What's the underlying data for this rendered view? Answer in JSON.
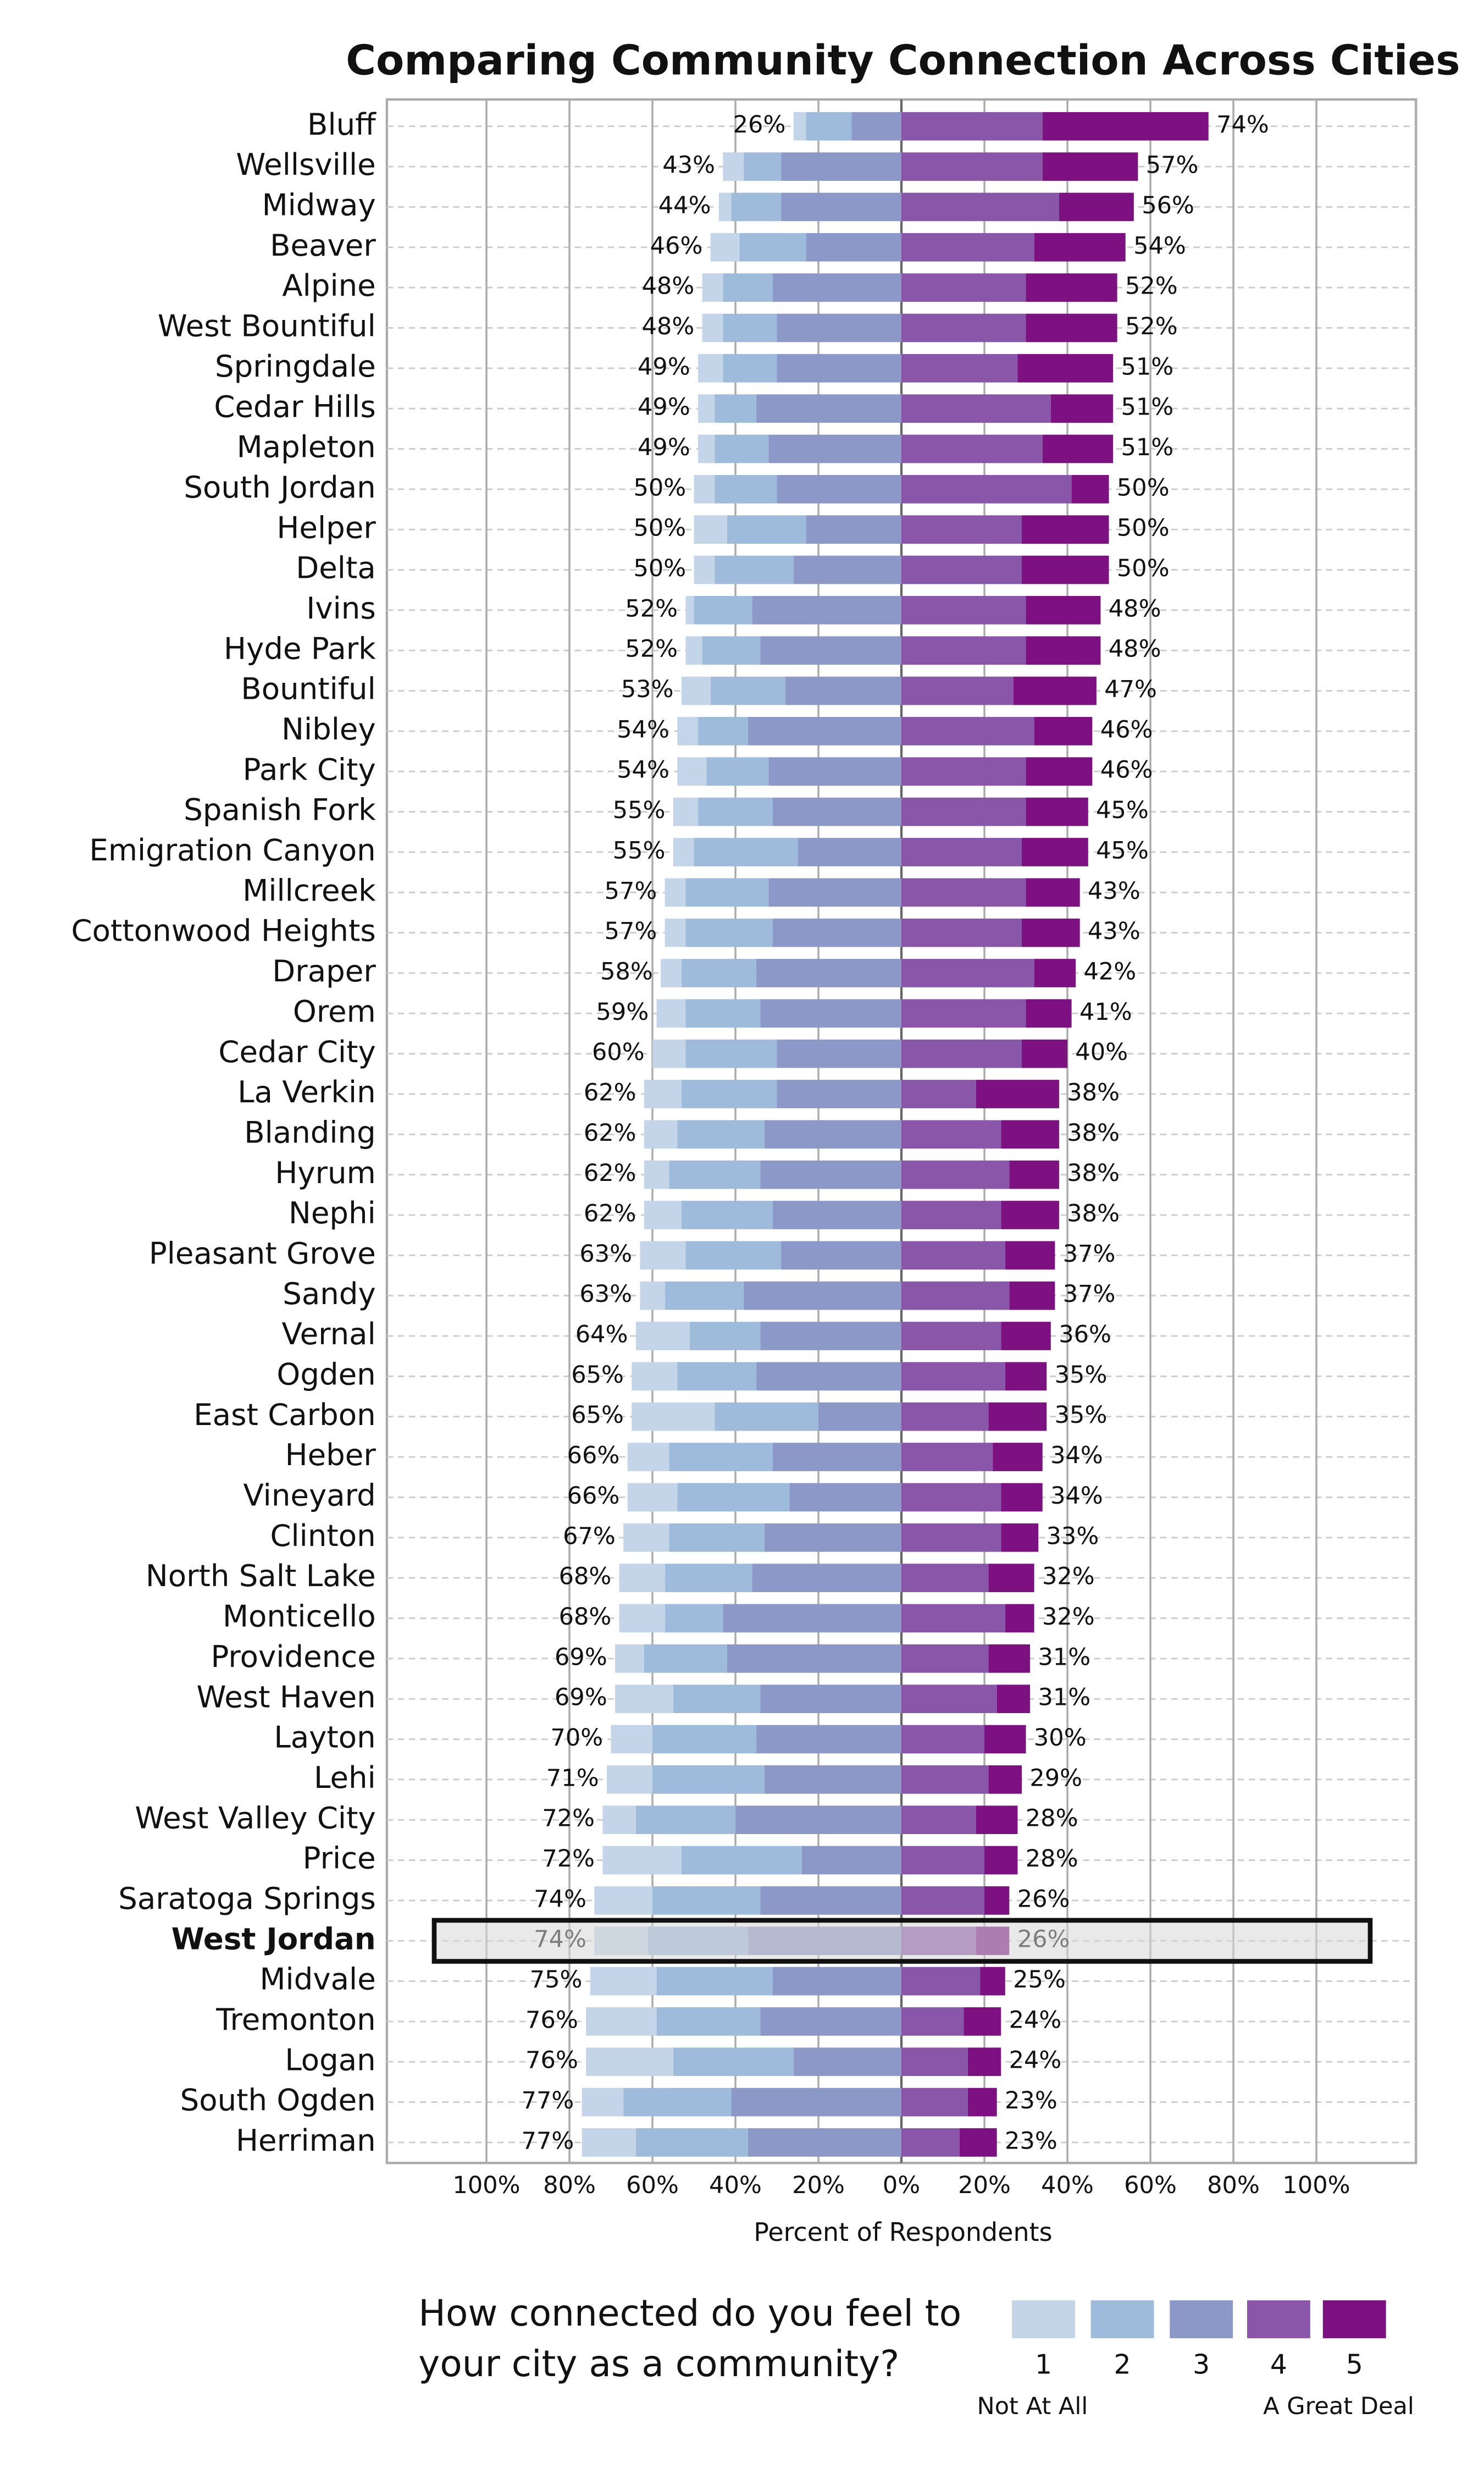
{
  "chart_data": {
    "type": "diverging_bar",
    "title": "Comparing Community Connection Across Cities",
    "x_label": "Percent of Respondents",
    "legend_title": "How connected do you feel to your city as a community?",
    "legend_low": "Not At All",
    "legend_high": "A Great Deal",
    "highlight": "West Jordan",
    "categories": [
      "Bluff",
      "Wellsville",
      "Midway",
      "Beaver",
      "Alpine",
      "West Bountiful",
      "Springdale",
      "Cedar Hills",
      "Mapleton",
      "South Jordan",
      "Helper",
      "Delta",
      "Ivins",
      "Hyde Park",
      "Bountiful",
      "Nibley",
      "Park City",
      "Spanish Fork",
      "Emigration Canyon",
      "Millcreek",
      "Cottonwood Heights",
      "Draper",
      "Orem",
      "Cedar City",
      "La Verkin",
      "Blanding",
      "Hyrum",
      "Nephi",
      "Pleasant Grove",
      "Sandy",
      "Vernal",
      "Ogden",
      "East Carbon",
      "Heber",
      "Vineyard",
      "Clinton",
      "North Salt Lake",
      "Monticello",
      "Providence",
      "West Haven",
      "Layton",
      "Lehi",
      "West Valley City",
      "Price",
      "Saratoga Springs",
      "West Jordan",
      "Midvale",
      "Tremonton",
      "Logan",
      "South Ogden",
      "Herriman"
    ],
    "series": [
      {
        "name": "1",
        "side": "left",
        "color": "#c4d4e9",
        "values": [
          3,
          5,
          3,
          7,
          5,
          5,
          6,
          4,
          4,
          5,
          8,
          5,
          2,
          4,
          7,
          5,
          7,
          6,
          5,
          5,
          5,
          5,
          7,
          8,
          9,
          8,
          6,
          9,
          11,
          6,
          13,
          11,
          20,
          10,
          12,
          11,
          11,
          11,
          7,
          14,
          10,
          11,
          8,
          19,
          14,
          13,
          16,
          17,
          21,
          10,
          13
        ]
      },
      {
        "name": "2",
        "side": "left",
        "color": "#9fbbdc",
        "values": [
          11,
          9,
          12,
          16,
          12,
          13,
          13,
          10,
          13,
          15,
          19,
          19,
          14,
          14,
          18,
          12,
          15,
          18,
          25,
          20,
          21,
          18,
          18,
          22,
          23,
          21,
          22,
          22,
          23,
          19,
          17,
          19,
          25,
          25,
          27,
          23,
          21,
          14,
          20,
          21,
          25,
          27,
          24,
          29,
          26,
          24,
          28,
          25,
          29,
          26,
          27
        ]
      },
      {
        "name": "3",
        "side": "left",
        "color": "#8c98c8",
        "values": [
          12,
          29,
          29,
          23,
          31,
          30,
          30,
          35,
          32,
          30,
          23,
          26,
          36,
          34,
          28,
          37,
          32,
          31,
          25,
          32,
          31,
          35,
          34,
          30,
          30,
          33,
          34,
          31,
          29,
          38,
          34,
          35,
          20,
          31,
          27,
          33,
          36,
          43,
          42,
          34,
          35,
          33,
          40,
          24,
          34,
          37,
          31,
          34,
          26,
          41,
          37
        ]
      },
      {
        "name": "4",
        "side": "right",
        "color": "#8a56a9",
        "values": [
          34,
          34,
          38,
          32,
          30,
          30,
          28,
          36,
          34,
          41,
          29,
          29,
          30,
          30,
          27,
          32,
          30,
          30,
          29,
          30,
          29,
          32,
          30,
          29,
          18,
          24,
          26,
          24,
          25,
          26,
          24,
          25,
          21,
          22,
          24,
          24,
          21,
          25,
          21,
          23,
          20,
          21,
          18,
          20,
          20,
          18,
          19,
          15,
          16,
          16,
          14
        ]
      },
      {
        "name": "5",
        "side": "right",
        "color": "#7d1182",
        "values": [
          40,
          23,
          18,
          22,
          22,
          22,
          23,
          15,
          17,
          9,
          21,
          21,
          18,
          18,
          20,
          14,
          16,
          15,
          16,
          13,
          14,
          10,
          11,
          11,
          20,
          14,
          12,
          14,
          12,
          11,
          12,
          10,
          14,
          12,
          10,
          9,
          11,
          7,
          10,
          8,
          10,
          8,
          10,
          8,
          6,
          8,
          6,
          9,
          8,
          7,
          9
        ]
      }
    ],
    "left_totals": [
      26,
      43,
      44,
      46,
      48,
      48,
      49,
      49,
      49,
      50,
      50,
      50,
      52,
      52,
      53,
      54,
      54,
      55,
      55,
      57,
      57,
      58,
      59,
      60,
      62,
      62,
      62,
      62,
      63,
      63,
      64,
      65,
      65,
      66,
      66,
      67,
      68,
      68,
      69,
      69,
      70,
      71,
      72,
      72,
      74,
      74,
      75,
      76,
      76,
      77,
      77
    ],
    "left_value_labels": [
      "26%",
      "43%",
      "44%",
      "46%",
      "48%",
      "48%",
      "49%",
      "49%",
      "49%",
      "50%",
      "50%",
      "50%",
      "52%",
      "52%",
      "53%",
      "54%",
      "54%",
      "55%",
      "55%",
      "57%",
      "57%",
      "58%",
      "59%",
      "60%",
      "62%",
      "62%",
      "62%",
      "62%",
      "63%",
      "63%",
      "64%",
      "65%",
      "65%",
      "66%",
      "66%",
      "67%",
      "68%",
      "68%",
      "69%",
      "69%",
      "70%",
      "71%",
      "72%",
      "72%",
      "74%",
      "74%",
      "75%",
      "76%",
      "76%",
      "77%",
      "77%"
    ],
    "right_totals": [
      74,
      57,
      56,
      54,
      52,
      52,
      51,
      51,
      51,
      50,
      50,
      50,
      48,
      48,
      47,
      46,
      46,
      45,
      45,
      43,
      43,
      42,
      41,
      40,
      38,
      38,
      38,
      38,
      37,
      37,
      36,
      35,
      35,
      34,
      34,
      33,
      32,
      32,
      31,
      31,
      30,
      29,
      28,
      28,
      26,
      26,
      25,
      24,
      24,
      23,
      23
    ],
    "right_value_labels": [
      "74%",
      "57%",
      "56%",
      "54%",
      "52%",
      "52%",
      "51%",
      "51%",
      "51%",
      "50%",
      "50%",
      "50%",
      "48%",
      "48%",
      "47%",
      "46%",
      "46%",
      "45%",
      "45%",
      "43%",
      "43%",
      "42%",
      "41%",
      "40%",
      "38%",
      "38%",
      "38%",
      "38%",
      "37%",
      "37%",
      "36%",
      "35%",
      "35%",
      "34%",
      "34%",
      "33%",
      "32%",
      "32%",
      "31%",
      "31%",
      "30%",
      "29%",
      "28%",
      "28%",
      "26%",
      "26%",
      "25%",
      "24%",
      "24%",
      "23%",
      "23%"
    ],
    "xlim": [
      -124,
      124
    ],
    "xticks": [
      {
        "value": -100,
        "label": "100%"
      },
      {
        "value": -80,
        "label": "80%"
      },
      {
        "value": -60,
        "label": "60%"
      },
      {
        "value": -40,
        "label": "40%"
      },
      {
        "value": -20,
        "label": "20%"
      },
      {
        "value": 0,
        "label": "0%"
      },
      {
        "value": 20,
        "label": "20%"
      },
      {
        "value": 40,
        "label": "40%"
      },
      {
        "value": 60,
        "label": "60%"
      },
      {
        "value": 80,
        "label": "80%"
      },
      {
        "value": 100,
        "label": "100%"
      }
    ],
    "grid": true
  }
}
